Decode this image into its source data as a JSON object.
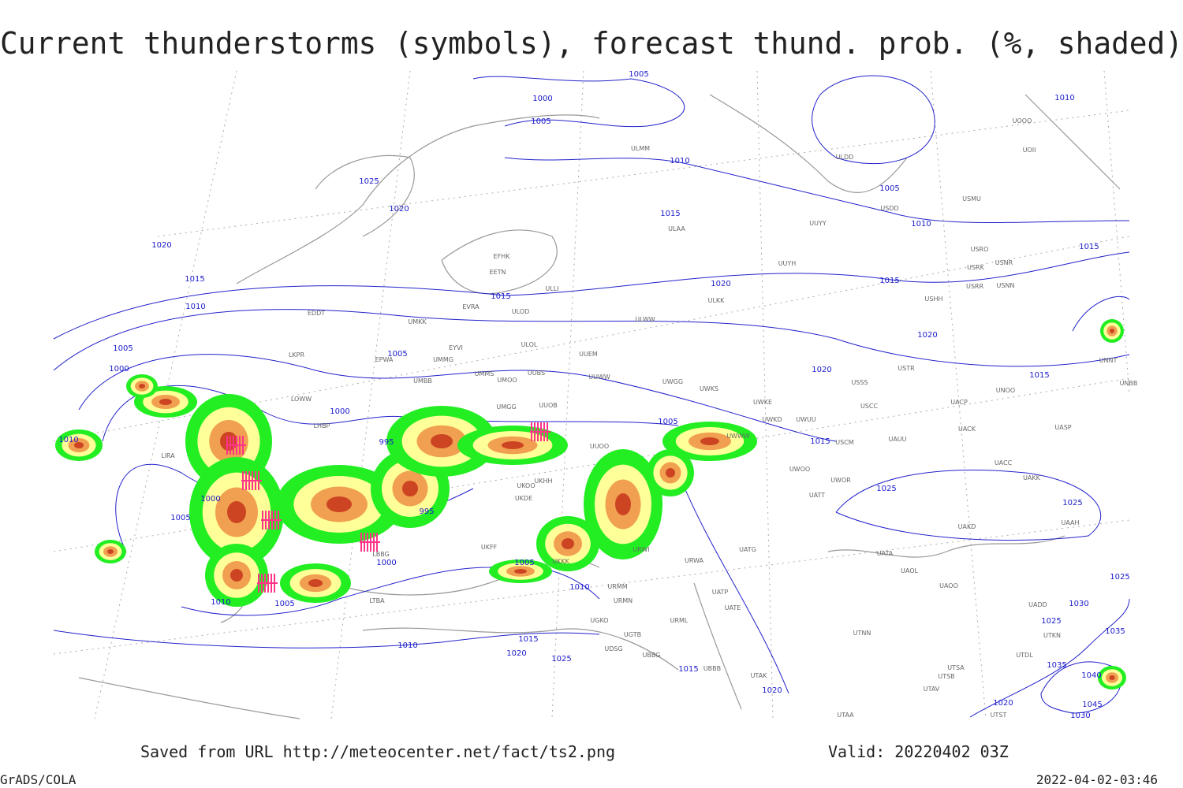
{
  "title": "Current thunderstorms (symbols), forecast thund. prob. (%, shaded)",
  "footer": {
    "saved": "Saved from URL http://meteocenter.net/fact/ts2.png",
    "valid": "Valid: 20220402 03Z",
    "software": "GrADS/COLA",
    "timestamp": "2022-04-02-03:46"
  },
  "isobar_labels": [
    "1005",
    "1000",
    "1005",
    "1025",
    "1020",
    "1020",
    "1015",
    "1010",
    "1005",
    "1000",
    "1010",
    "1000",
    "995",
    "995",
    "1000",
    "1005",
    "1000",
    "1010",
    "1005",
    "1005",
    "1010",
    "1015",
    "1010",
    "1020",
    "1025",
    "1015",
    "1005",
    "1010",
    "1015",
    "1005",
    "1010",
    "1015",
    "1010",
    "1015",
    "1020",
    "1020",
    "1020",
    "1015",
    "1015",
    "1005",
    "1025",
    "1025",
    "1015",
    "1020",
    "1020",
    "1030",
    "1025",
    "1035",
    "1035",
    "1040",
    "1045",
    "1030",
    "1025"
  ],
  "stations": [
    "EFHK",
    "EETN",
    "EVRA",
    "ULOD",
    "ULLI",
    "EDDT",
    "UMKK",
    "EYVI",
    "ULOL",
    "UUEM",
    "LKPR",
    "EPWA",
    "UMMG",
    "UMMS",
    "UMOO",
    "UUBS",
    "UUWW",
    "UWGG",
    "UWKS",
    "UMBB",
    "LOWW",
    "LHBP",
    "UMGG",
    "UUOB",
    "UWKE",
    "UWKD",
    "UWUU",
    "UUOO",
    "UWWW",
    "LIRA",
    "UKKK",
    "ULMM",
    "ULAA",
    "UUYY",
    "UUYH",
    "ULKK",
    "ULWW",
    "USSS",
    "USTR",
    "USCC",
    "USCM",
    "UAUU",
    "UACK",
    "UASP",
    "UACP",
    "UNOO",
    "UNNT",
    "UNBB",
    "UAOO",
    "UATA",
    "UAOL",
    "UAKD",
    "UATT",
    "UWOO",
    "UWOR",
    "UATG",
    "URWA",
    "URWI",
    "URMM",
    "URMN",
    "UATP",
    "UATE",
    "URML",
    "UTNN",
    "UGKO",
    "UGTB",
    "UBBG",
    "UDSG",
    "UBBB",
    "UTAK",
    "UTSA",
    "UTSB",
    "UTAV",
    "UTAA",
    "UTST",
    "USRR",
    "USRK",
    "USRO",
    "USNR",
    "USNN",
    "USHH",
    "USMU",
    "USDD",
    "ULDD",
    "UOOO",
    "UOII",
    "UAKK",
    "UACC",
    "UAAH",
    "UADD",
    "UTDL",
    "UTKN",
    "LTBA",
    "LBBG",
    "UKFF",
    "UKOO",
    "UKDE",
    "UKHH"
  ]
}
